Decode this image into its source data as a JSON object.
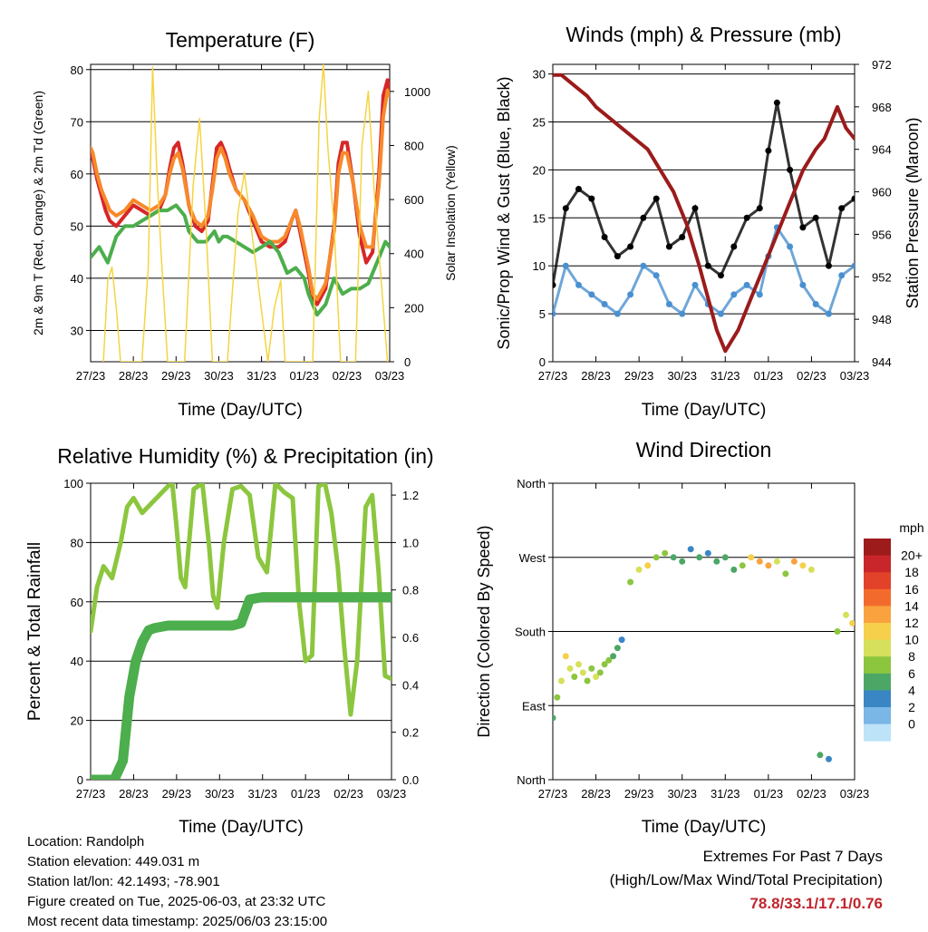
{
  "chart_data": [
    {
      "type": "line",
      "title": "Temperature (F)",
      "xlabel": "Time (Day/UTC)",
      "ylabel": "2m & 9m T (Red, Orange) & 2m Td (Green)",
      "y2label": "Solar Insolation (Yellow)",
      "x_ticks": [
        "27/23",
        "28/23",
        "29/23",
        "30/23",
        "31/23",
        "01/23",
        "02/23",
        "03/23"
      ],
      "ylim": [
        24,
        81
      ],
      "y_ticks": [
        30,
        40,
        50,
        60,
        70,
        80
      ],
      "y2lim": [
        0,
        1100
      ],
      "y2_ticks": [
        0,
        200,
        400,
        600,
        800,
        1000
      ],
      "series": [
        {
          "name": "2m T",
          "color": "#d62728",
          "x": [
            0,
            0.05,
            0.15,
            0.25,
            0.35,
            0.45,
            0.6,
            0.8,
            1.0,
            1.2,
            1.4,
            1.6,
            1.75,
            1.85,
            1.95,
            2.05,
            2.15,
            2.3,
            2.45,
            2.6,
            2.75,
            2.85,
            2.95,
            3.05,
            3.15,
            3.25,
            3.4,
            3.6,
            3.8,
            4.0,
            4.2,
            4.4,
            4.55,
            4.7,
            4.8,
            4.9,
            5.0,
            5.1,
            5.2,
            5.3,
            5.5,
            5.7,
            5.8,
            5.9,
            6.0,
            6.15,
            6.3,
            6.45,
            6.6,
            6.75,
            6.85,
            6.95,
            7.0
          ],
          "values": [
            64,
            63,
            59,
            56,
            53,
            51,
            50,
            52,
            54,
            53,
            52,
            53,
            56,
            61,
            65,
            66,
            62,
            54,
            50,
            49,
            51,
            58,
            65,
            66,
            64,
            61,
            57,
            55,
            51,
            47,
            46,
            46,
            47,
            51,
            53,
            49,
            45,
            41,
            36,
            35,
            38,
            50,
            62,
            66,
            66,
            58,
            48,
            43,
            45,
            60,
            75,
            78,
            76
          ]
        },
        {
          "name": "9m T",
          "color": "#f7892b",
          "x": [
            0,
            0.05,
            0.15,
            0.25,
            0.35,
            0.45,
            0.6,
            0.8,
            1.0,
            1.2,
            1.4,
            1.6,
            1.75,
            1.85,
            1.95,
            2.05,
            2.15,
            2.3,
            2.45,
            2.6,
            2.75,
            2.85,
            2.95,
            3.05,
            3.15,
            3.25,
            3.4,
            3.6,
            3.8,
            4.0,
            4.2,
            4.4,
            4.55,
            4.7,
            4.8,
            4.9,
            5.0,
            5.1,
            5.2,
            5.3,
            5.5,
            5.7,
            5.8,
            5.9,
            6.0,
            6.15,
            6.3,
            6.45,
            6.6,
            6.75,
            6.85,
            6.95,
            7.0
          ],
          "values": [
            65,
            64,
            60,
            57,
            55,
            53,
            52,
            53,
            55,
            54,
            53,
            54,
            56,
            60,
            63,
            64,
            61,
            54,
            51,
            50,
            52,
            57,
            63,
            65,
            63,
            60,
            57,
            55,
            52,
            48,
            47,
            47,
            48,
            51,
            53,
            50,
            46,
            42,
            37,
            36,
            39,
            49,
            60,
            64,
            64,
            58,
            50,
            46,
            46,
            58,
            71,
            76,
            75
          ]
        },
        {
          "name": "2m Td",
          "color": "#4cae4c",
          "x": [
            0,
            0.2,
            0.4,
            0.6,
            0.8,
            1.0,
            1.2,
            1.4,
            1.6,
            1.8,
            2.0,
            2.1,
            2.2,
            2.3,
            2.4,
            2.5,
            2.7,
            2.8,
            2.9,
            3.0,
            3.1,
            3.2,
            3.4,
            3.6,
            3.8,
            4.0,
            4.2,
            4.4,
            4.6,
            4.8,
            5.0,
            5.1,
            5.2,
            5.3,
            5.5,
            5.7,
            5.9,
            6.1,
            6.3,
            6.5,
            6.7,
            6.9,
            7.0
          ],
          "values": [
            44,
            46,
            43,
            48,
            50,
            50,
            51,
            52,
            53,
            53,
            54,
            53,
            52,
            49,
            48,
            47,
            47,
            48,
            49,
            47,
            48,
            48,
            47,
            46,
            45,
            46,
            47,
            45,
            41,
            42,
            40,
            37,
            35,
            33,
            35,
            40,
            37,
            38,
            38,
            39,
            43,
            47,
            46
          ]
        },
        {
          "name": "Solar Insolation",
          "color": "#f5d442",
          "axis": "y2",
          "x": [
            0.3,
            0.4,
            0.5,
            0.6,
            0.7,
            1.2,
            1.35,
            1.45,
            1.55,
            1.65,
            1.8,
            2.2,
            2.4,
            2.55,
            2.7,
            2.85,
            3.2,
            3.45,
            3.6,
            4.15,
            4.3,
            4.45,
            4.55,
            4.7,
            5.2,
            5.35,
            5.45,
            5.55,
            5.7,
            5.85,
            6.2,
            6.35,
            6.5,
            6.65,
            6.8,
            6.95
          ],
          "values": [
            0,
            300,
            350,
            200,
            0,
            0,
            350,
            1090,
            700,
            400,
            0,
            0,
            650,
            900,
            500,
            0,
            0,
            550,
            700,
            0,
            200,
            300,
            0,
            0,
            0,
            900,
            1100,
            800,
            500,
            0,
            0,
            800,
            1000,
            600,
            300,
            0
          ]
        }
      ]
    },
    {
      "type": "scatter",
      "title": "Winds (mph) & Pressure (mb)",
      "xlabel": "Time (Day/UTC)",
      "ylabel": "Sonic/Prop Wind & Gust (Blue, Black)",
      "y2label": "Station Pressure (Maroon)",
      "x_ticks": [
        "27/23",
        "28/23",
        "29/23",
        "30/23",
        "31/23",
        "01/23",
        "02/23",
        "03/23"
      ],
      "ylim": [
        0,
        31
      ],
      "y_ticks": [
        0,
        5,
        10,
        15,
        20,
        25,
        30
      ],
      "y2lim": [
        944,
        972
      ],
      "y2_ticks": [
        944,
        948,
        952,
        956,
        960,
        964,
        968,
        972
      ],
      "series": [
        {
          "name": "Wind",
          "color": "#4a90d0",
          "x": [
            0,
            0.3,
            0.6,
            0.9,
            1.2,
            1.5,
            1.8,
            2.1,
            2.4,
            2.7,
            3.0,
            3.3,
            3.6,
            3.9,
            4.2,
            4.5,
            4.8,
            5.0,
            5.2,
            5.5,
            5.8,
            6.1,
            6.4,
            6.7,
            7.0
          ],
          "values": [
            5,
            10,
            8,
            7,
            6,
            5,
            7,
            10,
            9,
            6,
            5,
            8,
            6,
            5,
            7,
            8,
            7,
            11,
            14,
            12,
            8,
            6,
            5,
            9,
            10
          ]
        },
        {
          "name": "Gust",
          "color": "#000000",
          "x": [
            0,
            0.3,
            0.6,
            0.9,
            1.2,
            1.5,
            1.8,
            2.1,
            2.4,
            2.7,
            3.0,
            3.3,
            3.6,
            3.9,
            4.2,
            4.5,
            4.8,
            5.0,
            5.2,
            5.5,
            5.8,
            6.1,
            6.4,
            6.7,
            7.0
          ],
          "values": [
            8,
            16,
            18,
            17,
            13,
            11,
            12,
            15,
            17,
            12,
            13,
            16,
            10,
            9,
            12,
            15,
            16,
            22,
            27,
            20,
            14,
            15,
            10,
            16,
            17
          ]
        },
        {
          "name": "Station Pressure",
          "color": "#9b1b1b",
          "axis": "y2",
          "x": [
            0,
            0.2,
            0.5,
            0.8,
            1.0,
            1.3,
            1.6,
            1.9,
            2.2,
            2.5,
            2.8,
            3.1,
            3.4,
            3.6,
            3.8,
            4.0,
            4.3,
            4.6,
            4.9,
            5.2,
            5.5,
            5.8,
            6.1,
            6.3,
            6.5,
            6.6,
            6.8,
            7.0
          ],
          "values": [
            971,
            971,
            970,
            969,
            968,
            967,
            966,
            965,
            964,
            962,
            960,
            957,
            953,
            950,
            947,
            945,
            947,
            950,
            953,
            956,
            959,
            962,
            964,
            965,
            967,
            968,
            966,
            965
          ]
        }
      ]
    },
    {
      "type": "line",
      "title": "Relative Humidity (%) & Precipitation (in)",
      "xlabel": "Time (Day/UTC)",
      "ylabel": "Percent & Total Rainfall",
      "x_ticks": [
        "27/23",
        "28/23",
        "29/23",
        "30/23",
        "31/23",
        "01/23",
        "02/23",
        "03/23"
      ],
      "ylim": [
        0,
        100
      ],
      "y_ticks": [
        0,
        20,
        40,
        60,
        80,
        100
      ],
      "y2lim": [
        0,
        1.25
      ],
      "y2_ticks": [
        "0.0",
        "0.2",
        "0.4",
        "0.6",
        "0.8",
        "1.0",
        "1.2"
      ],
      "series": [
        {
          "name": "Relative Humidity",
          "color": "#8cc63f",
          "x": [
            0,
            0.15,
            0.3,
            0.5,
            0.7,
            0.85,
            1.0,
            1.2,
            1.4,
            1.6,
            1.8,
            1.9,
            2.0,
            2.1,
            2.2,
            2.4,
            2.6,
            2.75,
            2.85,
            2.95,
            3.1,
            3.3,
            3.5,
            3.7,
            3.9,
            4.1,
            4.3,
            4.5,
            4.7,
            4.85,
            5.0,
            5.15,
            5.3,
            5.45,
            5.6,
            5.75,
            5.9,
            6.05,
            6.2,
            6.4,
            6.55,
            6.7,
            6.85,
            7.0
          ],
          "values": [
            50,
            65,
            72,
            68,
            80,
            92,
            95,
            90,
            93,
            96,
            99,
            100,
            85,
            68,
            65,
            98,
            100,
            80,
            62,
            58,
            80,
            98,
            99,
            96,
            75,
            70,
            100,
            97,
            95,
            60,
            40,
            42,
            99,
            100,
            90,
            72,
            45,
            22,
            40,
            92,
            96,
            70,
            35,
            34
          ]
        },
        {
          "name": "Total Precipitation",
          "color": "#4cae4c",
          "axis": "y2",
          "x": [
            0,
            0.3,
            0.55,
            0.75,
            0.9,
            1.05,
            1.2,
            1.35,
            1.5,
            1.8,
            2.2,
            2.6,
            3.0,
            3.3,
            3.5,
            3.7,
            4.0,
            4.5,
            5.0,
            5.5,
            6.0,
            6.5,
            7.0
          ],
          "values": [
            0.0,
            0.0,
            0.0,
            0.08,
            0.35,
            0.5,
            0.58,
            0.63,
            0.64,
            0.65,
            0.65,
            0.65,
            0.65,
            0.65,
            0.66,
            0.76,
            0.77,
            0.77,
            0.77,
            0.77,
            0.77,
            0.77,
            0.77
          ]
        }
      ]
    },
    {
      "type": "scatter",
      "title": "Wind Direction",
      "xlabel": "Time (Day/UTC)",
      "ylabel": "Direction (Colored By Speed)",
      "x_ticks": [
        "27/23",
        "28/23",
        "29/23",
        "30/23",
        "31/23",
        "01/23",
        "02/23",
        "03/23"
      ],
      "ylim": [
        0,
        360
      ],
      "y_ticks": [
        "North",
        "East",
        "South",
        "West",
        "North"
      ],
      "y_tick_values": [
        0,
        90,
        180,
        270,
        360
      ],
      "colorbar": {
        "title": "mph",
        "labels": [
          "20+",
          "18",
          "16",
          "14",
          "12",
          "10",
          "8",
          "6",
          "4",
          "2",
          "0"
        ],
        "colors": [
          "#9e1b1b",
          "#c8262a",
          "#e2422a",
          "#f36b2c",
          "#f9a23e",
          "#f6cf4b",
          "#d6e05a",
          "#8cc63f",
          "#4ca767",
          "#3a86c4",
          "#7ab6e6",
          "#bde3f8"
        ]
      },
      "series": [
        {
          "name": "Direction",
          "x": [
            0,
            0.1,
            0.2,
            0.3,
            0.4,
            0.5,
            0.6,
            0.7,
            0.8,
            0.9,
            1.0,
            1.1,
            1.2,
            1.3,
            1.4,
            1.5,
            1.6,
            1.8,
            2.0,
            2.2,
            2.4,
            2.6,
            2.8,
            3.0,
            3.2,
            3.4,
            3.6,
            3.8,
            4.0,
            4.2,
            4.4,
            4.6,
            4.8,
            5.0,
            5.2,
            5.4,
            5.6,
            5.8,
            6.0,
            6.2,
            6.4,
            6.6,
            6.8,
            6.95
          ],
          "values": [
            75,
            100,
            120,
            150,
            135,
            125,
            140,
            130,
            120,
            135,
            125,
            130,
            140,
            145,
            150,
            160,
            170,
            240,
            255,
            260,
            270,
            275,
            270,
            265,
            280,
            270,
            275,
            265,
            270,
            255,
            260,
            270,
            265,
            260,
            265,
            250,
            265,
            260,
            255,
            30,
            25,
            180,
            200,
            190
          ],
          "speeds": [
            6,
            8,
            10,
            12,
            10,
            9,
            11,
            10,
            8,
            9,
            10,
            8,
            9,
            8,
            7,
            6,
            5,
            8,
            10,
            12,
            9,
            8,
            7,
            6,
            5,
            6,
            5,
            6,
            7,
            6,
            8,
            12,
            14,
            15,
            10,
            8,
            14,
            12,
            10,
            6,
            4,
            9,
            11,
            12
          ]
        }
      ]
    }
  ],
  "info": {
    "location": "Location: Randolph",
    "elevation": "Station elevation: 449.031 m",
    "latlon": "Station lat/lon: 42.1493; -78.901",
    "created": "Figure created on Tue, 2025-06-03, at 23:32 UTC",
    "recent": "Most recent data timestamp: 2025/06/03 23:15:00"
  },
  "extremes": {
    "title": "Extremes For Past 7 Days",
    "subtitle": "(High/Low/Max Wind/Total Precipitation)",
    "values": "78.8/33.1/17.1/0.76"
  }
}
